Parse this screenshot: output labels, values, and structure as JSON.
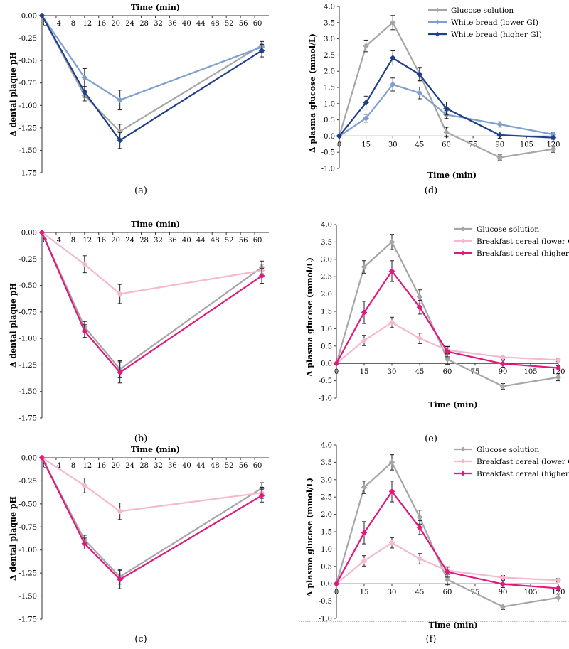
{
  "chart_data": [
    {
      "panel": "(a)",
      "type": "line",
      "title": "",
      "xlabel": "Time (min)",
      "ylabel": "Δ dental plaque pH",
      "xlim": [
        0,
        64
      ],
      "ylim": [
        -1.75,
        0
      ],
      "xticks": [
        "0",
        "4",
        "8",
        "12",
        "16",
        "20",
        "24",
        "28",
        "32",
        "36",
        "40",
        "44",
        "48",
        "52",
        "56",
        "60"
      ],
      "yticks": [
        "0.00",
        "-0.25",
        "-0.50",
        "-0.75",
        "-1.00",
        "-1.25",
        "-1.50",
        "-1.75"
      ],
      "x": [
        0,
        12,
        22,
        62
      ],
      "series": [
        {
          "name": "Glucose solution",
          "color": "#a6a6a6",
          "marker": "diamond",
          "values": [
            0,
            -0.89,
            -1.29,
            -0.33
          ],
          "errors": [
            0,
            0.06,
            0.08,
            0.05
          ]
        },
        {
          "name": "White bread (lower GI)",
          "color": "#7f9fce",
          "marker": "diamond",
          "values": [
            0,
            -0.69,
            -0.94,
            -0.35
          ],
          "errors": [
            0,
            0.1,
            0.11,
            0.06
          ]
        },
        {
          "name": "White bread (higher GI)",
          "color": "#1f3f8a",
          "marker": "diamond",
          "values": [
            0,
            -0.85,
            -1.39,
            -0.39
          ],
          "errors": [
            0,
            0.06,
            0.09,
            0.07
          ]
        }
      ]
    },
    {
      "panel": "(b)",
      "type": "line",
      "title": "",
      "xlabel": "Time (min)",
      "ylabel": "Δ dental plaque pH",
      "xlim": [
        0,
        64
      ],
      "ylim": [
        -1.75,
        0
      ],
      "xticks": [
        "0",
        "4",
        "8",
        "12",
        "16",
        "20",
        "24",
        "28",
        "32",
        "36",
        "40",
        "44",
        "48",
        "52",
        "56",
        "60"
      ],
      "yticks": [
        "0.00",
        "-0.25",
        "-0.50",
        "-0.75",
        "-1.00",
        "-1.25",
        "-1.50",
        "-1.75"
      ],
      "x": [
        0,
        12,
        22,
        62
      ],
      "series": [
        {
          "name": "Glucose solution",
          "color": "#a6a6a6",
          "marker": "diamond",
          "values": [
            0,
            -0.89,
            -1.29,
            -0.33
          ],
          "errors": [
            0,
            0.05,
            0.08,
            0.06
          ]
        },
        {
          "name": "Breakfast cereal (lower GI)",
          "color": "#f5b8cf",
          "marker": "diamond",
          "values": [
            0,
            -0.3,
            -0.58,
            -0.36
          ],
          "errors": [
            0,
            0.08,
            0.09,
            0.06
          ]
        },
        {
          "name": "Breakfast cereal (higher GI)",
          "color": "#e0187f",
          "marker": "diamond",
          "values": [
            0,
            -0.93,
            -1.32,
            -0.41
          ],
          "errors": [
            0,
            0.06,
            0.1,
            0.07
          ]
        }
      ]
    },
    {
      "panel": "(c)",
      "type": "line",
      "title": "",
      "xlabel": "Time (min)",
      "ylabel": "Δ dental plaque pH",
      "xlim": [
        0,
        64
      ],
      "ylim": [
        -1.75,
        0
      ],
      "xticks": [
        "0",
        "4",
        "8",
        "12",
        "16",
        "20",
        "24",
        "28",
        "32",
        "36",
        "40",
        "44",
        "48",
        "52",
        "56",
        "60"
      ],
      "yticks": [
        "0.00",
        "-0.25",
        "-0.50",
        "-0.75",
        "-1.00",
        "-1.25",
        "-1.50",
        "-1.75"
      ],
      "x": [
        0,
        12,
        22,
        62
      ],
      "series": [
        {
          "name": "Glucose solution",
          "color": "#a6a6a6",
          "marker": "diamond",
          "values": [
            0,
            -0.89,
            -1.29,
            -0.33
          ],
          "errors": [
            0,
            0.05,
            0.08,
            0.06
          ]
        },
        {
          "name": "Breakfast cereal (lower GI)",
          "color": "#f5b8cf",
          "marker": "diamond",
          "values": [
            0,
            -0.3,
            -0.58,
            -0.38
          ],
          "errors": [
            0,
            0.08,
            0.09,
            0.06
          ]
        },
        {
          "name": "Breakfast cereal (higher GI)",
          "color": "#e0187f",
          "marker": "diamond",
          "values": [
            0,
            -0.93,
            -1.32,
            -0.41
          ],
          "errors": [
            0,
            0.06,
            0.1,
            0.07
          ]
        }
      ]
    },
    {
      "panel": "(d)",
      "type": "line",
      "title": "",
      "xlabel": "Time (min)",
      "ylabel": "Δ plasma glucose (mmol/L)",
      "xlim": [
        0,
        120
      ],
      "ylim": [
        -1.0,
        4.0
      ],
      "xticks": [
        "0",
        "15",
        "30",
        "45",
        "60",
        "75",
        "90",
        "105",
        "120"
      ],
      "yticks": [
        "4.0",
        "3.5",
        "3.0",
        "2.5",
        "2.0",
        "1.5",
        "1.0",
        "0.5",
        "0.0",
        "-0.5",
        "-1.0"
      ],
      "legend": "top-right",
      "x": [
        0,
        15,
        30,
        45,
        60,
        90,
        120
      ],
      "series": [
        {
          "name": "Glucose solution",
          "color": "#a6a6a6",
          "marker": "diamond",
          "values": [
            0,
            2.78,
            3.5,
            1.92,
            0.12,
            -0.66,
            -0.4
          ],
          "errors": [
            0,
            0.18,
            0.22,
            0.2,
            0.15,
            0.08,
            0.1
          ]
        },
        {
          "name": "White bread (lower GI)",
          "color": "#7f9fce",
          "marker": "diamond",
          "values": [
            0,
            0.55,
            1.59,
            1.33,
            0.66,
            0.36,
            0.05
          ],
          "errors": [
            0,
            0.12,
            0.2,
            0.18,
            0.12,
            0.08,
            0.05
          ]
        },
        {
          "name": "White bread (higher GI)",
          "color": "#1f3f8a",
          "marker": "diamond",
          "values": [
            0,
            1.03,
            2.41,
            1.9,
            0.85,
            0.03,
            -0.05
          ],
          "errors": [
            0,
            0.2,
            0.22,
            0.2,
            0.2,
            0.1,
            0.05
          ]
        }
      ]
    },
    {
      "panel": "(e)",
      "type": "line",
      "title": "",
      "xlabel": "Time (min)",
      "ylabel": "Δ plasma glucose (mmol/L)",
      "xlim": [
        0,
        120
      ],
      "ylim": [
        -1.0,
        4.0
      ],
      "xticks": [
        "0",
        "15",
        "30",
        "45",
        "60",
        "75",
        "90",
        "105",
        "120"
      ],
      "yticks": [
        "4.0",
        "3.5",
        "3.0",
        "2.5",
        "2.0",
        "1.5",
        "1.0",
        "0.5",
        "0.0",
        "-0.5",
        "-1.0"
      ],
      "legend": "top-right",
      "x": [
        0,
        15,
        30,
        45,
        60,
        90,
        120
      ],
      "series": [
        {
          "name": "Glucose solution",
          "color": "#a6a6a6",
          "marker": "diamond",
          "values": [
            0,
            2.78,
            3.5,
            1.92,
            0.12,
            -0.66,
            -0.4
          ],
          "errors": [
            0,
            0.18,
            0.22,
            0.2,
            0.15,
            0.08,
            0.1
          ]
        },
        {
          "name": "Breakfast cereal (lower GI)",
          "color": "#f5b8cf",
          "marker": "diamond",
          "values": [
            0,
            0.66,
            1.18,
            0.72,
            0.38,
            0.18,
            0.1
          ],
          "errors": [
            0,
            0.15,
            0.15,
            0.15,
            0.1,
            0.06,
            0.05
          ]
        },
        {
          "name": "Breakfast cereal (higher GI)",
          "color": "#e0187f",
          "marker": "diamond",
          "values": [
            0,
            1.47,
            2.66,
            1.62,
            0.34,
            -0.01,
            -0.13
          ],
          "errors": [
            0,
            0.32,
            0.3,
            0.2,
            0.15,
            0.1,
            0.06
          ]
        }
      ]
    },
    {
      "panel": "(f)",
      "type": "line",
      "title": "",
      "xlabel": "Time (min)",
      "ylabel": "Δ plasma glucose (mmol/L)",
      "xlim": [
        0,
        120
      ],
      "ylim": [
        -1.0,
        4.0
      ],
      "xticks": [
        "0",
        "15",
        "30",
        "45",
        "60",
        "75",
        "90",
        "105",
        "120"
      ],
      "yticks": [
        "4.0",
        "3.5",
        "3.0",
        "2.5",
        "2.0",
        "1.5",
        "1.0",
        "0.5",
        "0.0",
        "-0.5",
        "-1.0"
      ],
      "legend": "top-right",
      "x": [
        0,
        15,
        30,
        45,
        60,
        90,
        120
      ],
      "series": [
        {
          "name": "Glucose solution",
          "color": "#a6a6a6",
          "marker": "diamond",
          "values": [
            0,
            2.78,
            3.5,
            1.92,
            0.12,
            -0.66,
            -0.4
          ],
          "errors": [
            0,
            0.18,
            0.22,
            0.2,
            0.15,
            0.08,
            0.1
          ]
        },
        {
          "name": "Breakfast cereal (lower GI)",
          "color": "#f5b8cf",
          "marker": "diamond",
          "values": [
            0,
            0.66,
            1.18,
            0.72,
            0.38,
            0.18,
            0.1
          ],
          "errors": [
            0,
            0.15,
            0.15,
            0.15,
            0.1,
            0.06,
            0.05
          ]
        },
        {
          "name": "Breakfast cereal (higher GI)",
          "color": "#e0187f",
          "marker": "diamond",
          "values": [
            0,
            1.47,
            2.66,
            1.62,
            0.34,
            -0.01,
            -0.13
          ],
          "errors": [
            0,
            0.32,
            0.3,
            0.2,
            0.15,
            0.1,
            0.06
          ]
        }
      ]
    }
  ]
}
